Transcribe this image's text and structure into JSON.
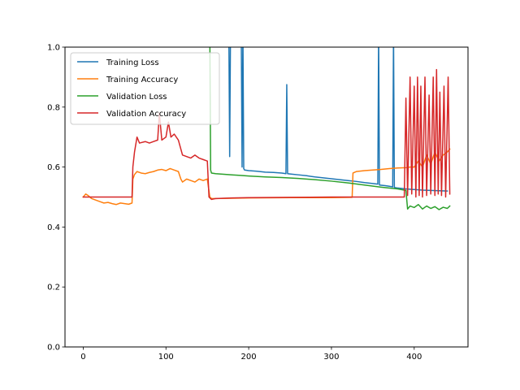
{
  "chart_data": {
    "type": "line",
    "title": "",
    "xlabel": "",
    "ylabel": "",
    "xlim": [
      -22,
      465
    ],
    "ylim": [
      0,
      1
    ],
    "xticks": [
      0,
      100,
      200,
      300,
      400
    ],
    "yticks": [
      0.0,
      0.2,
      0.4,
      0.6,
      0.8,
      1.0
    ],
    "xtick_labels": [
      "0",
      "100",
      "200",
      "300",
      "400"
    ],
    "ytick_labels": [
      "0.0",
      "0.2",
      "0.4",
      "0.6",
      "0.8",
      "1.0"
    ],
    "grid": false,
    "legend_position": "top-left",
    "series": [
      {
        "name": "Training Loss",
        "color": "#1f77b4",
        "points": [
          [
            176,
            1.05
          ],
          [
            177,
            0.635
          ],
          [
            178,
            1.05
          ],
          [
            191,
            1.05
          ],
          [
            192,
            0.6
          ],
          [
            193,
            1.05
          ],
          [
            194,
            0.595
          ],
          [
            195,
            0.59
          ],
          [
            200,
            0.588
          ],
          [
            210,
            0.586
          ],
          [
            220,
            0.583
          ],
          [
            230,
            0.582
          ],
          [
            240,
            0.58
          ],
          [
            245,
            0.578
          ],
          [
            246,
            0.875
          ],
          [
            247,
            0.578
          ],
          [
            250,
            0.577
          ],
          [
            260,
            0.574
          ],
          [
            270,
            0.571
          ],
          [
            280,
            0.567
          ],
          [
            290,
            0.564
          ],
          [
            300,
            0.561
          ],
          [
            310,
            0.558
          ],
          [
            320,
            0.555
          ],
          [
            330,
            0.552
          ],
          [
            340,
            0.548
          ],
          [
            350,
            0.545
          ],
          [
            356,
            0.543
          ],
          [
            357,
            1.05
          ],
          [
            358,
            0.54
          ],
          [
            365,
            0.538
          ],
          [
            370,
            0.536
          ],
          [
            374,
            0.534
          ],
          [
            375,
            1.05
          ],
          [
            376,
            0.532
          ],
          [
            380,
            0.53
          ],
          [
            390,
            0.527
          ],
          [
            400,
            0.525
          ],
          [
            410,
            0.523
          ],
          [
            420,
            0.522
          ],
          [
            430,
            0.521
          ],
          [
            440,
            0.52
          ]
        ]
      },
      {
        "name": "Training Accuracy",
        "color": "#ff7f0e",
        "points": [
          [
            0,
            0.5
          ],
          [
            3,
            0.51
          ],
          [
            6,
            0.505
          ],
          [
            10,
            0.495
          ],
          [
            15,
            0.49
          ],
          [
            20,
            0.485
          ],
          [
            25,
            0.48
          ],
          [
            30,
            0.482
          ],
          [
            35,
            0.478
          ],
          [
            40,
            0.475
          ],
          [
            45,
            0.48
          ],
          [
            50,
            0.478
          ],
          [
            55,
            0.476
          ],
          [
            59,
            0.48
          ],
          [
            60,
            0.56
          ],
          [
            62,
            0.575
          ],
          [
            65,
            0.585
          ],
          [
            70,
            0.58
          ],
          [
            75,
            0.578
          ],
          [
            80,
            0.582
          ],
          [
            85,
            0.585
          ],
          [
            90,
            0.59
          ],
          [
            95,
            0.592
          ],
          [
            100,
            0.588
          ],
          [
            105,
            0.595
          ],
          [
            110,
            0.59
          ],
          [
            115,
            0.585
          ],
          [
            118,
            0.56
          ],
          [
            120,
            0.55
          ],
          [
            125,
            0.56
          ],
          [
            130,
            0.555
          ],
          [
            135,
            0.55
          ],
          [
            140,
            0.56
          ],
          [
            145,
            0.555
          ],
          [
            150,
            0.56
          ],
          [
            153,
            0.5
          ],
          [
            155,
            0.495
          ],
          [
            160,
            0.495
          ],
          [
            180,
            0.496
          ],
          [
            200,
            0.497
          ],
          [
            250,
            0.498
          ],
          [
            300,
            0.498
          ],
          [
            325,
            0.499
          ],
          [
            326,
            0.58
          ],
          [
            330,
            0.585
          ],
          [
            340,
            0.588
          ],
          [
            350,
            0.59
          ],
          [
            360,
            0.592
          ],
          [
            370,
            0.595
          ],
          [
            380,
            0.597
          ],
          [
            390,
            0.598
          ],
          [
            395,
            0.6
          ],
          [
            400,
            0.6
          ],
          [
            405,
            0.62
          ],
          [
            410,
            0.6
          ],
          [
            415,
            0.64
          ],
          [
            420,
            0.61
          ],
          [
            425,
            0.65
          ],
          [
            430,
            0.62
          ],
          [
            435,
            0.64
          ],
          [
            440,
            0.65
          ],
          [
            443,
            0.66
          ]
        ]
      },
      {
        "name": "Validation Loss",
        "color": "#2ca02c",
        "points": [
          [
            153,
            1.05
          ],
          [
            154,
            0.59
          ],
          [
            155,
            0.58
          ],
          [
            160,
            0.578
          ],
          [
            170,
            0.576
          ],
          [
            180,
            0.574
          ],
          [
            190,
            0.572
          ],
          [
            200,
            0.57
          ],
          [
            220,
            0.567
          ],
          [
            240,
            0.565
          ],
          [
            260,
            0.562
          ],
          [
            280,
            0.558
          ],
          [
            300,
            0.553
          ],
          [
            320,
            0.547
          ],
          [
            340,
            0.54
          ],
          [
            360,
            0.533
          ],
          [
            380,
            0.527
          ],
          [
            390,
            0.522
          ],
          [
            392,
            0.46
          ],
          [
            395,
            0.47
          ],
          [
            400,
            0.465
          ],
          [
            405,
            0.475
          ],
          [
            410,
            0.46
          ],
          [
            415,
            0.47
          ],
          [
            420,
            0.462
          ],
          [
            425,
            0.468
          ],
          [
            430,
            0.458
          ],
          [
            435,
            0.466
          ],
          [
            440,
            0.462
          ],
          [
            443,
            0.47
          ]
        ]
      },
      {
        "name": "Validation Accuracy",
        "color": "#d62728",
        "points": [
          [
            0,
            0.5
          ],
          [
            20,
            0.5
          ],
          [
            40,
            0.5
          ],
          [
            59,
            0.5
          ],
          [
            60,
            0.6
          ],
          [
            62,
            0.65
          ],
          [
            65,
            0.7
          ],
          [
            68,
            0.68
          ],
          [
            75,
            0.685
          ],
          [
            80,
            0.68
          ],
          [
            85,
            0.685
          ],
          [
            90,
            0.69
          ],
          [
            92,
            0.78
          ],
          [
            95,
            0.69
          ],
          [
            100,
            0.7
          ],
          [
            103,
            0.75
          ],
          [
            106,
            0.7
          ],
          [
            110,
            0.71
          ],
          [
            115,
            0.69
          ],
          [
            120,
            0.64
          ],
          [
            125,
            0.635
          ],
          [
            130,
            0.63
          ],
          [
            135,
            0.64
          ],
          [
            140,
            0.63
          ],
          [
            145,
            0.625
          ],
          [
            150,
            0.62
          ],
          [
            152,
            0.5
          ],
          [
            155,
            0.492
          ],
          [
            160,
            0.495
          ],
          [
            180,
            0.497
          ],
          [
            200,
            0.498
          ],
          [
            250,
            0.499
          ],
          [
            300,
            0.5
          ],
          [
            350,
            0.5
          ],
          [
            380,
            0.5
          ],
          [
            388,
            0.5
          ],
          [
            390,
            0.83
          ],
          [
            392,
            0.505
          ],
          [
            395,
            0.9
          ],
          [
            397,
            0.51
          ],
          [
            400,
            0.87
          ],
          [
            402,
            0.5
          ],
          [
            404,
            0.9
          ],
          [
            406,
            0.505
          ],
          [
            408,
            0.87
          ],
          [
            410,
            0.5
          ],
          [
            413,
            0.9
          ],
          [
            415,
            0.505
          ],
          [
            418,
            0.84
          ],
          [
            420,
            0.51
          ],
          [
            423,
            0.9
          ],
          [
            425,
            0.505
          ],
          [
            427,
            0.925
          ],
          [
            429,
            0.51
          ],
          [
            431,
            0.85
          ],
          [
            433,
            0.505
          ],
          [
            436,
            0.87
          ],
          [
            438,
            0.5
          ],
          [
            441,
            0.9
          ],
          [
            443,
            0.51
          ]
        ]
      }
    ]
  }
}
